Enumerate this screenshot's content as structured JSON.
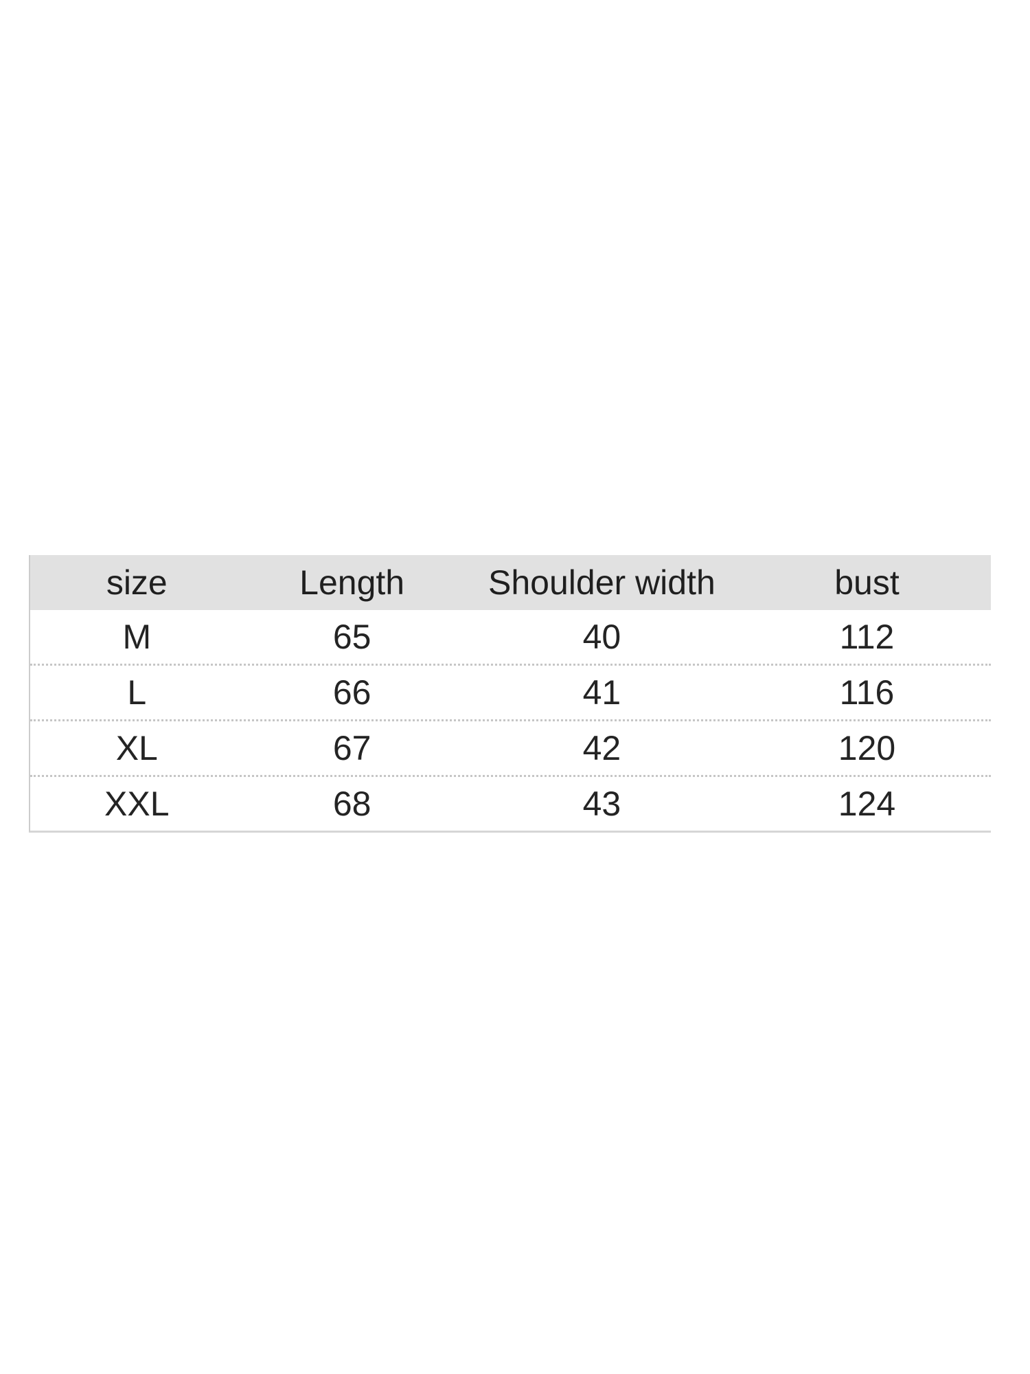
{
  "chart_data": {
    "type": "table",
    "title": "",
    "columns": [
      "size",
      "Length",
      "Shoulder width",
      "bust"
    ],
    "rows": [
      {
        "size": "M",
        "length": 65,
        "shoulder_width": 40,
        "bust": 112
      },
      {
        "size": "L",
        "length": 66,
        "shoulder_width": 41,
        "bust": 116
      },
      {
        "size": "XL",
        "length": 67,
        "shoulder_width": 42,
        "bust": 120
      },
      {
        "size": "XXL",
        "length": 68,
        "shoulder_width": 43,
        "bust": 124
      }
    ]
  },
  "table": {
    "headers": [
      "size",
      "Length",
      "Shoulder width",
      "bust"
    ],
    "rows": [
      [
        "M",
        "65",
        "40",
        "112"
      ],
      [
        "L",
        "66",
        "41",
        "116"
      ],
      [
        "XL",
        "67",
        "42",
        "120"
      ],
      [
        "XXL",
        "68",
        "43",
        "124"
      ]
    ]
  },
  "colors": {
    "background": "#ffffff",
    "header_bg": "#e1e1e1",
    "text": "#222222",
    "row_divider": "#c6c6c6",
    "table_border_left": "#cccccc",
    "table_border_bottom": "#d6d6d6"
  }
}
